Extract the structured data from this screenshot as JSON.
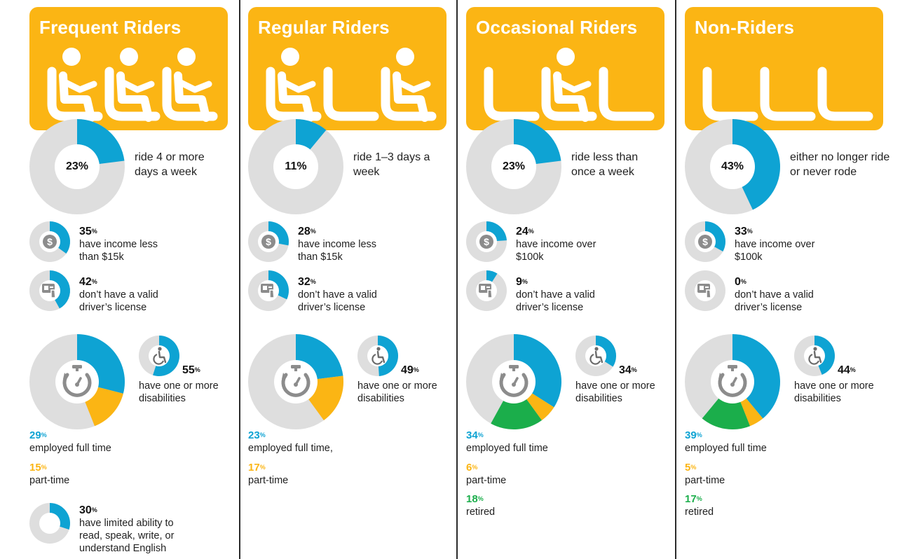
{
  "colors": {
    "orange": "#FBB514",
    "blue": "#0EA3D3",
    "green": "#1BAE4B",
    "gray_track": "#DEDEDE",
    "icon_gray": "#8C8C8C"
  },
  "chart_data": [
    {
      "type": "pie",
      "group": "Frequent Riders",
      "ridership": {
        "value": 23,
        "label": "23%",
        "text": "ride 4 or more days a week"
      },
      "income": {
        "value": 35,
        "text": "have income less than $15k"
      },
      "license": {
        "value": 42,
        "text": "don’t have a valid driver’s license"
      },
      "disabilities": {
        "value": 55,
        "text": "have one or more disabilities"
      },
      "employment": {
        "full_time": 29,
        "part_time": 15,
        "retired": null,
        "full_time_text": "employed full time",
        "part_time_text": "part-time",
        "retired_text": ""
      },
      "english": {
        "value": 30,
        "text": "have limited ability to read, speak, write, or understand English"
      }
    },
    {
      "type": "pie",
      "group": "Regular Riders",
      "ridership": {
        "value": 11,
        "label": "11%",
        "text": "ride 1–3 days a week"
      },
      "income": {
        "value": 28,
        "text": "have income less than $15k"
      },
      "license": {
        "value": 32,
        "text": "don’t have a valid driver’s license"
      },
      "disabilities": {
        "value": 49,
        "text": "have one or more disabilities"
      },
      "employment": {
        "full_time": 23,
        "part_time": 17,
        "retired": null,
        "full_time_text": "employed full time,",
        "part_time_text": "part-time",
        "retired_text": ""
      }
    },
    {
      "type": "pie",
      "group": "Occasional Riders",
      "ridership": {
        "value": 23,
        "label": "23%",
        "text": "ride less than once a week"
      },
      "income": {
        "value": 24,
        "text": "have income over $100k"
      },
      "license": {
        "value": 9,
        "text": "don’t have a valid driver’s license"
      },
      "disabilities": {
        "value": 34,
        "text": "have one or more disabilities"
      },
      "employment": {
        "full_time": 34,
        "part_time": 6,
        "retired": 18,
        "full_time_text": "employed full time",
        "part_time_text": "part-time",
        "retired_text": "retired"
      }
    },
    {
      "type": "pie",
      "group": "Non-Riders",
      "ridership": {
        "value": 43,
        "label": "43%",
        "text": "either no longer ride or never rode"
      },
      "income": {
        "value": 33,
        "text": "have income over $100k"
      },
      "license": {
        "value": 0,
        "text": "don’t have a valid driver’s license"
      },
      "disabilities": {
        "value": 44,
        "text": "have one or more disabilities"
      },
      "employment": {
        "full_time": 39,
        "part_time": 5,
        "retired": 17,
        "full_time_text": "employed full time",
        "part_time_text": "part-time",
        "retired_text": "retired"
      }
    }
  ],
  "seat_pattern": [
    [
      "occupied",
      "occupied",
      "occupied"
    ],
    [
      "occupied",
      "empty",
      "occupied"
    ],
    [
      "empty",
      "occupied",
      "empty"
    ],
    [
      "empty",
      "empty",
      "empty"
    ]
  ],
  "percent_sign": "%"
}
